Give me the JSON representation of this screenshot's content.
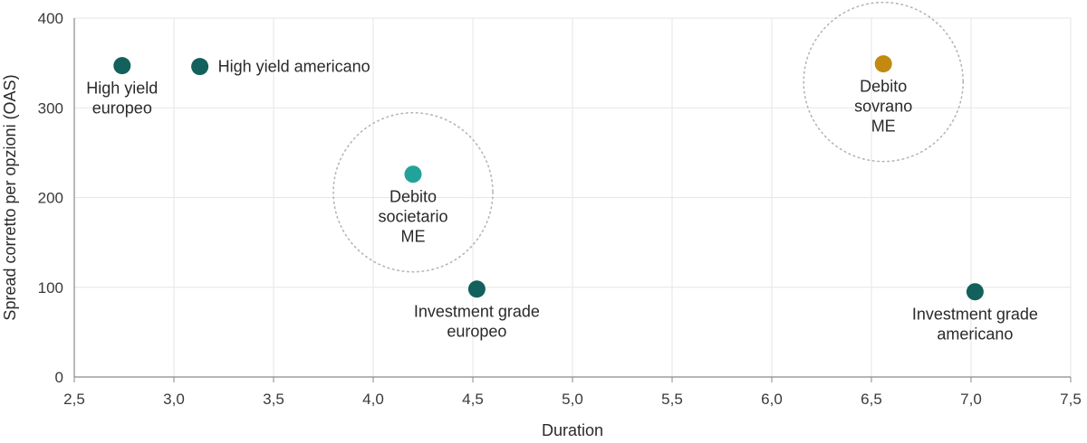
{
  "chart_data": {
    "type": "scatter",
    "xlabel": "Duration",
    "ylabel": "Spread corretto per opzioni (OAS)",
    "xlim": [
      2.5,
      7.5
    ],
    "ylim": [
      0,
      400
    ],
    "x_ticks": [
      "2,5",
      "3,0",
      "3,5",
      "4,0",
      "4,5",
      "5,0",
      "5,5",
      "6,0",
      "6,5",
      "7,0",
      "7,5"
    ],
    "y_ticks": [
      "0",
      "100",
      "200",
      "300",
      "400"
    ],
    "grid": true,
    "points": [
      {
        "label": "High yield europeo",
        "label_lines": [
          "High yield",
          "europeo"
        ],
        "label_pos": "below",
        "x": 2.74,
        "y": 347,
        "color": "#13605c"
      },
      {
        "label": "High yield americano",
        "label_lines": [
          "High yield americano"
        ],
        "label_pos": "right",
        "x": 3.13,
        "y": 346,
        "color": "#13605c"
      },
      {
        "label": "Debito societario ME",
        "label_lines": [
          "Debito",
          "societario",
          "ME"
        ],
        "label_pos": "below",
        "x": 4.2,
        "y": 226,
        "color": "#22a39a",
        "circled": true
      },
      {
        "label": "Investment grade europeo",
        "label_lines": [
          "Investment grade",
          "europeo"
        ],
        "label_pos": "below",
        "x": 4.52,
        "y": 98,
        "color": "#13605c"
      },
      {
        "label": "Debito sovrano ME",
        "label_lines": [
          "Debito",
          "sovrano",
          "ME"
        ],
        "label_pos": "below",
        "x": 6.56,
        "y": 349,
        "color": "#c28a10",
        "circled": true
      },
      {
        "label": "Investment grade americano",
        "label_lines": [
          "Investment grade",
          "americano"
        ],
        "label_pos": "below",
        "x": 7.02,
        "y": 95,
        "color": "#13605c"
      }
    ]
  },
  "colors": {
    "grid": "#e6e6e6",
    "axis": "#8a8a8a",
    "circle": "#b5b5b5"
  }
}
